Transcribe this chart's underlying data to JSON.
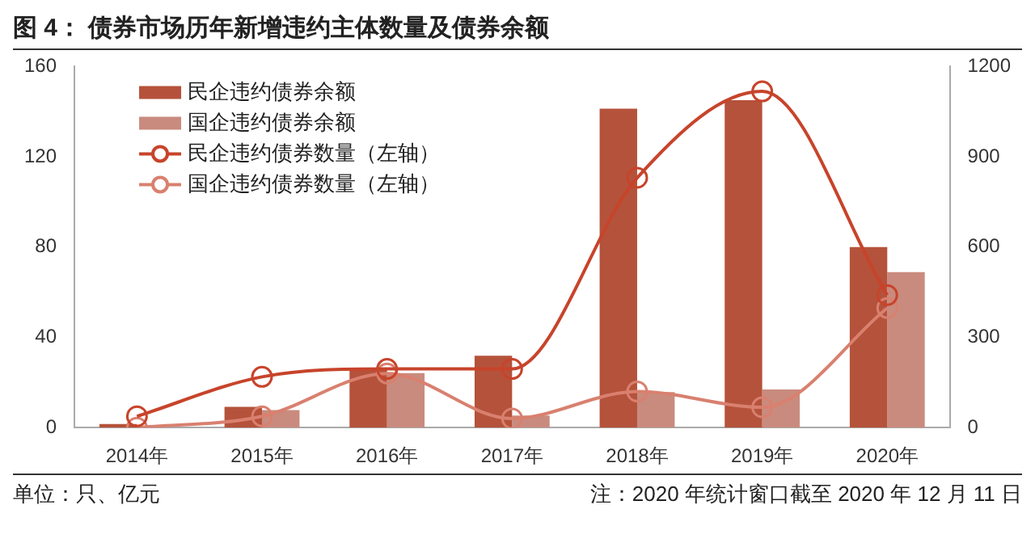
{
  "chart_data": {
    "type": "bar",
    "title": "图 4： 债券市场历年新增违约主体数量及债券余额",
    "categories": [
      "2014年",
      "2015年",
      "2016年",
      "2017年",
      "2018年",
      "2019年",
      "2020年"
    ],
    "series": [
      {
        "name": "民企违约债券余额",
        "axis": "y2",
        "color": "#b5523b",
        "values": [
          12,
          69,
          196,
          239,
          1060,
          1088,
          600
        ]
      },
      {
        "name": "国企违约债券余额",
        "axis": "y2",
        "color": "#c98b7e",
        "values": [
          null,
          58,
          181,
          40,
          118,
          127,
          517
        ]
      },
      {
        "name": "民企违约债券数量（左轴）",
        "type": "line",
        "color": "#c7442b",
        "marker": "circle",
        "values": [
          5,
          22.5,
          26,
          26,
          110.7,
          149,
          58.7
        ]
      },
      {
        "name": "国企违约债券数量（左轴）",
        "type": "line",
        "color": "#d9806f",
        "marker": "circle",
        "values": [
          0,
          5,
          24,
          4,
          16,
          9,
          53
        ]
      }
    ],
    "ylim": [
      0,
      160
    ],
    "yticks": [
      0,
      40,
      80,
      120,
      160
    ],
    "y2lim": [
      0,
      1200
    ],
    "y2ticks": [
      0,
      300,
      600,
      900,
      1200
    ],
    "legend": "top left",
    "grid": false,
    "annotations": [
      "单位：只、亿元",
      "注：2020 年统计窗口截至 2020 年 12 月 11 日"
    ]
  }
}
